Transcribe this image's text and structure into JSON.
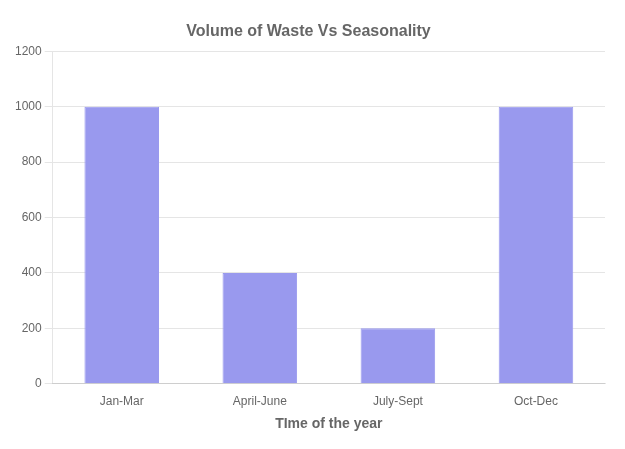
{
  "chart_data": {
    "type": "bar",
    "title": "Volume of Waste Vs Seasonality",
    "xlabel": "TIme of the year",
    "categories": [
      "Jan-Mar",
      "April-June",
      "July-Sept",
      "Oct-Dec"
    ],
    "values": [
      1000,
      400,
      200,
      1000
    ],
    "color": "#9999EE",
    "ylim": [
      0,
      1200
    ],
    "yticks": [
      0,
      200,
      400,
      600,
      800,
      1000,
      1200
    ],
    "grid": true
  }
}
